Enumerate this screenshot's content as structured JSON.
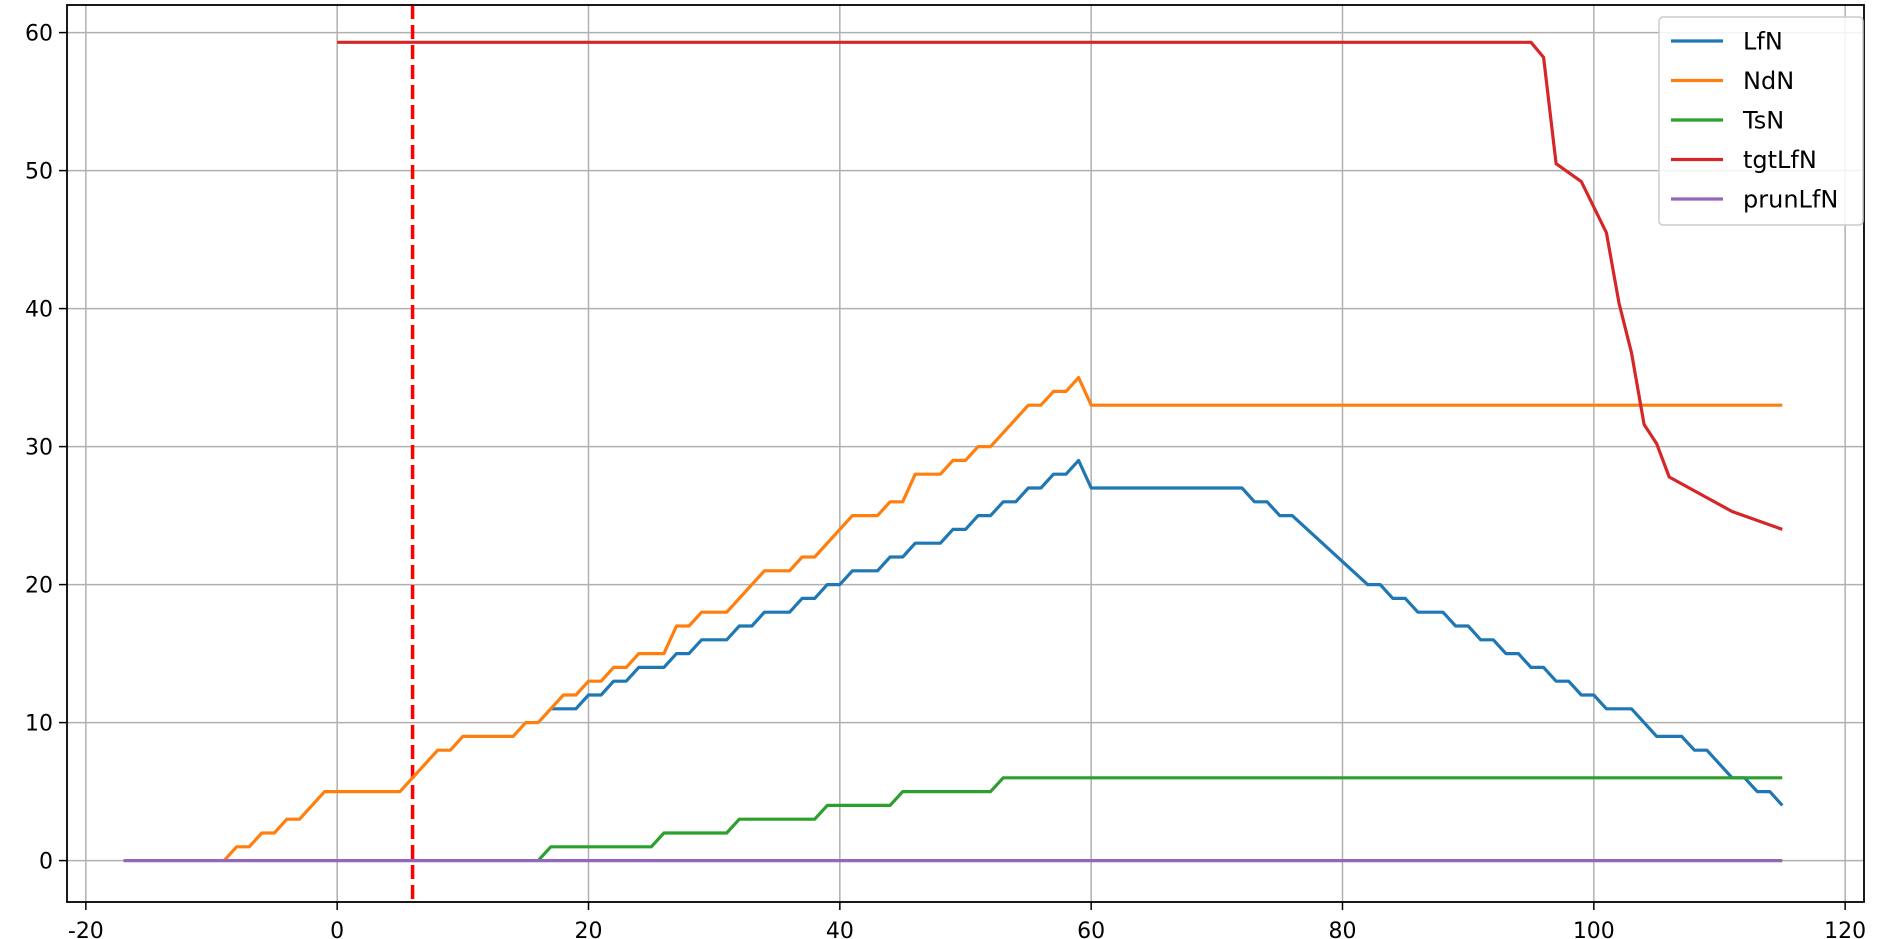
{
  "chart_data": {
    "type": "line",
    "title": "",
    "xlabel": "",
    "ylabel": "",
    "xlim": [
      -21.5,
      121.5
    ],
    "ylim": [
      -3,
      62
    ],
    "grid": true,
    "legend_position": "top-right",
    "xticks": [
      -20,
      0,
      20,
      40,
      60,
      80,
      100,
      120
    ],
    "yticks": [
      0,
      10,
      20,
      30,
      40,
      50,
      60
    ],
    "xtick_labels": [
      "-20",
      "0",
      "20",
      "40",
      "60",
      "80",
      "100",
      "120"
    ],
    "ytick_labels": [
      "0",
      "10",
      "20",
      "30",
      "40",
      "50",
      "60"
    ],
    "vline": {
      "x": 6,
      "color": "#ff0000",
      "style": "dashed"
    },
    "series": [
      {
        "name": "LfN",
        "color": "#1f77b4",
        "points": [
          [
            17,
            11
          ],
          [
            19,
            11
          ],
          [
            20,
            12
          ],
          [
            21,
            12
          ],
          [
            22,
            13
          ],
          [
            23,
            13
          ],
          [
            24,
            14
          ],
          [
            26,
            14
          ],
          [
            27,
            15
          ],
          [
            28,
            15
          ],
          [
            29,
            16
          ],
          [
            31,
            16
          ],
          [
            32,
            17
          ],
          [
            33,
            17
          ],
          [
            34,
            18
          ],
          [
            36,
            18
          ],
          [
            37,
            19
          ],
          [
            38,
            19
          ],
          [
            39,
            20
          ],
          [
            40,
            20
          ],
          [
            41,
            21
          ],
          [
            43,
            21
          ],
          [
            44,
            22
          ],
          [
            45,
            22
          ],
          [
            46,
            23
          ],
          [
            48,
            23
          ],
          [
            49,
            24
          ],
          [
            50,
            24
          ],
          [
            51,
            25
          ],
          [
            52,
            25
          ],
          [
            53,
            26
          ],
          [
            54,
            26
          ],
          [
            55,
            27
          ],
          [
            56,
            27
          ],
          [
            57,
            28
          ],
          [
            58,
            28
          ],
          [
            59,
            29
          ],
          [
            60,
            27
          ],
          [
            72,
            27
          ],
          [
            73,
            26
          ],
          [
            74,
            26
          ],
          [
            75,
            25
          ],
          [
            76,
            25
          ],
          [
            82,
            20
          ],
          [
            83,
            20
          ],
          [
            84,
            19
          ],
          [
            85,
            19
          ],
          [
            86,
            18
          ],
          [
            88,
            18
          ],
          [
            89,
            17
          ],
          [
            90,
            17
          ],
          [
            91,
            16
          ],
          [
            92,
            16
          ],
          [
            93,
            15
          ],
          [
            94,
            15
          ],
          [
            95,
            14
          ],
          [
            96,
            14
          ],
          [
            97,
            13
          ],
          [
            98,
            13
          ],
          [
            99,
            12
          ],
          [
            100,
            12
          ],
          [
            101,
            11
          ],
          [
            103,
            11
          ],
          [
            105,
            9
          ],
          [
            107,
            9
          ],
          [
            108,
            8
          ],
          [
            109,
            8
          ],
          [
            111,
            6
          ],
          [
            112,
            6
          ],
          [
            113,
            5
          ],
          [
            114,
            5
          ],
          [
            115,
            4
          ]
        ]
      },
      {
        "name": "NdN",
        "color": "#ff7f0e",
        "points": [
          [
            -9,
            0
          ],
          [
            -8,
            1
          ],
          [
            -7,
            1
          ],
          [
            -6,
            2
          ],
          [
            -5,
            2
          ],
          [
            -4,
            3
          ],
          [
            -3,
            3
          ],
          [
            -1,
            5
          ],
          [
            5,
            5
          ],
          [
            8,
            8
          ],
          [
            9,
            8
          ],
          [
            10,
            9
          ],
          [
            14,
            9
          ],
          [
            15,
            10
          ],
          [
            16,
            10
          ],
          [
            18,
            12
          ],
          [
            19,
            12
          ],
          [
            20,
            13
          ],
          [
            21,
            13
          ],
          [
            22,
            14
          ],
          [
            23,
            14
          ],
          [
            24,
            15
          ],
          [
            26,
            15
          ],
          [
            27,
            17
          ],
          [
            28,
            17
          ],
          [
            29,
            18
          ],
          [
            31,
            18
          ],
          [
            34,
            21
          ],
          [
            36,
            21
          ],
          [
            37,
            22
          ],
          [
            38,
            22
          ],
          [
            41,
            25
          ],
          [
            43,
            25
          ],
          [
            44,
            26
          ],
          [
            45,
            26
          ],
          [
            46,
            28
          ],
          [
            48,
            28
          ],
          [
            49,
            29
          ],
          [
            50,
            29
          ],
          [
            51,
            30
          ],
          [
            52,
            30
          ],
          [
            55,
            33
          ],
          [
            56,
            33
          ],
          [
            57,
            34
          ],
          [
            58,
            34
          ],
          [
            59,
            35
          ],
          [
            60,
            33
          ],
          [
            115,
            33
          ]
        ]
      },
      {
        "name": "TsN",
        "color": "#2ca02c",
        "points": [
          [
            16,
            0
          ],
          [
            17,
            1
          ],
          [
            25,
            1
          ],
          [
            26,
            2
          ],
          [
            31,
            2
          ],
          [
            32,
            3
          ],
          [
            38,
            3
          ],
          [
            39,
            4
          ],
          [
            44,
            4
          ],
          [
            45,
            5
          ],
          [
            52,
            5
          ],
          [
            53,
            6
          ],
          [
            115,
            6
          ]
        ]
      },
      {
        "name": "tgtLfN",
        "color": "#d62728",
        "points": [
          [
            0,
            59.3
          ],
          [
            95,
            59.3
          ],
          [
            96,
            58.2
          ],
          [
            97,
            50.5
          ],
          [
            99,
            49.2
          ],
          [
            101,
            45.5
          ],
          [
            102,
            40.4
          ],
          [
            103,
            36.8
          ],
          [
            104,
            31.6
          ],
          [
            105,
            30.2
          ],
          [
            106,
            27.8
          ],
          [
            111,
            25.3
          ],
          [
            115,
            24
          ]
        ]
      },
      {
        "name": "prunLfN",
        "color": "#9467bd",
        "points": [
          [
            -17,
            0
          ],
          [
            115,
            0
          ]
        ]
      }
    ]
  }
}
